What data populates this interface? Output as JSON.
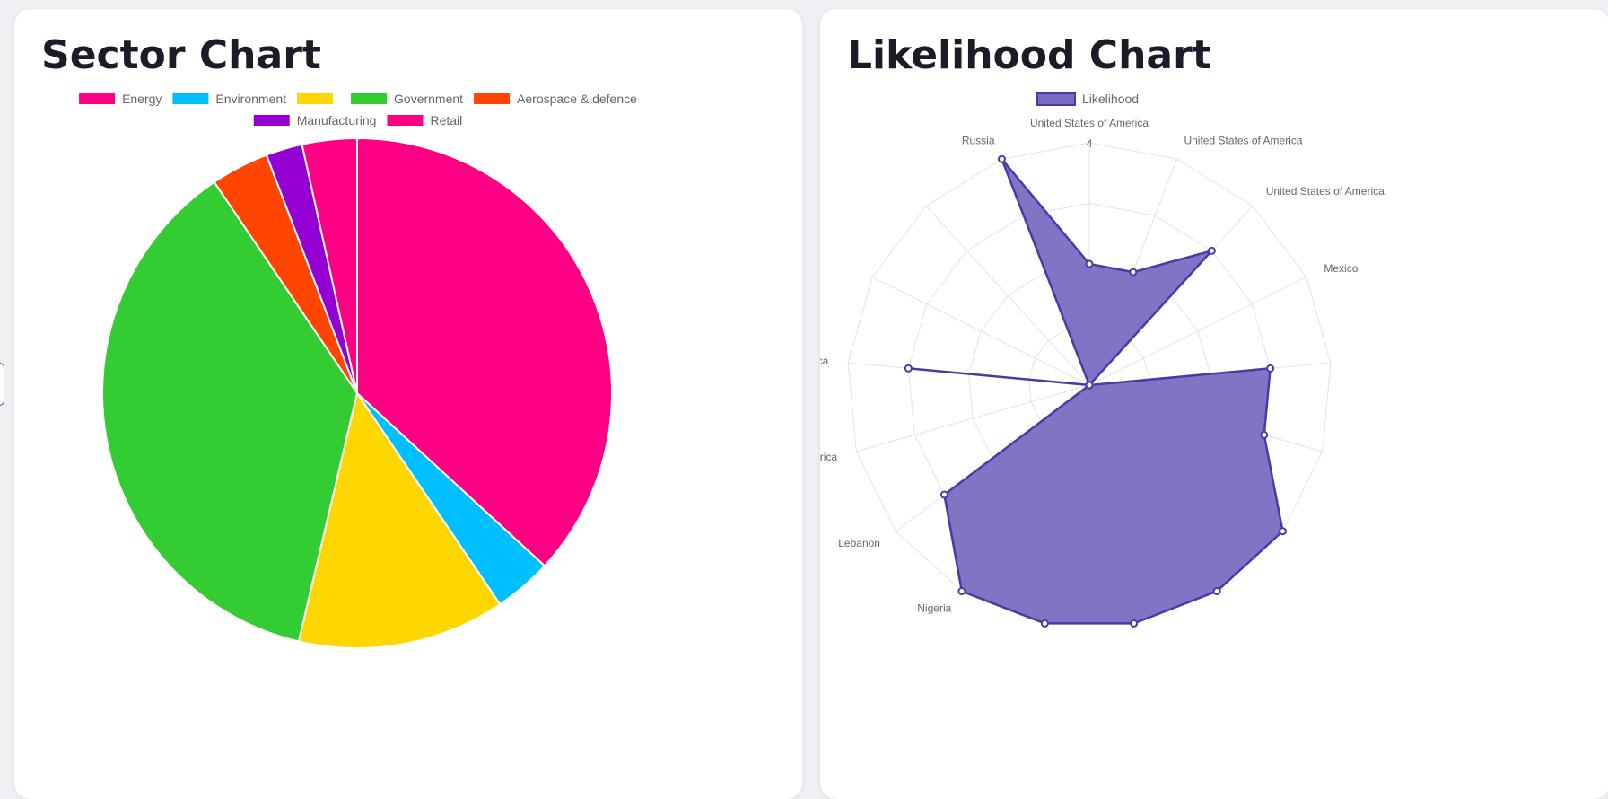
{
  "sector_card": {
    "title": "Sector Chart"
  },
  "likelihood_card": {
    "title": "Likelihood Chart"
  },
  "chart_data": [
    {
      "type": "pie",
      "title": "Sector Chart",
      "legend_position": "top",
      "categories": [
        "Energy",
        "Environment",
        "",
        "Government",
        "Aerospace & defence",
        "Manufacturing",
        "Retail"
      ],
      "series": [
        {
          "values": [
            35,
            3.5,
            12.5,
            35,
            3.5,
            2.2,
            3.3
          ]
        }
      ],
      "colors": [
        "#ff0084",
        "#00bfff",
        "#ffd700",
        "#33cc33",
        "#ff4500",
        "#9400d3",
        "#ff0084"
      ]
    },
    {
      "type": "radar",
      "title": "Likelihood Chart",
      "legend_position": "top",
      "categories": [
        "United States of America",
        "United States of America",
        "United States of America",
        "Mexico",
        "",
        "",
        "",
        "",
        "",
        "",
        "Nigeria",
        "Lebanon",
        "United States of America",
        "United States of America",
        "",
        "",
        "Russia"
      ],
      "series": [
        {
          "name": "Likelihood",
          "values": [
            2,
            2,
            3,
            0,
            3,
            3,
            4,
            4,
            4,
            4,
            4,
            3,
            0,
            3,
            0,
            0,
            4
          ]
        }
      ],
      "rlim": [
        0,
        4
      ],
      "r_tick_labels": [
        "4"
      ],
      "fill_color": "#7b6cc2",
      "line_color": "#4a3aa8",
      "grid": true
    }
  ]
}
